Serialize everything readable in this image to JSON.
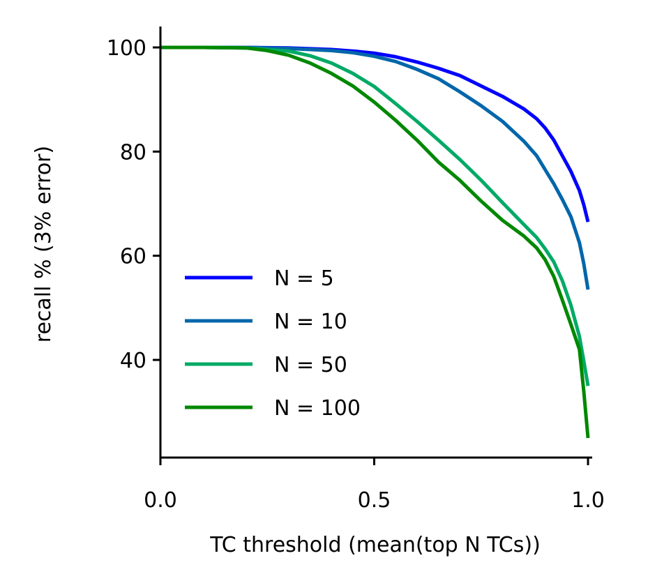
{
  "chart_data": {
    "type": "line",
    "title": "",
    "xlabel": "TC threshold (mean(top N TCs))",
    "ylabel": "recall % (3% error)",
    "xlim": [
      0.0,
      1.0
    ],
    "ylim": [
      22,
      104
    ],
    "xticks": [
      {
        "value": 0.0,
        "label": "0.0"
      },
      {
        "value": 0.5,
        "label": "0.5"
      },
      {
        "value": 1.0,
        "label": "1.0"
      }
    ],
    "yticks": [
      {
        "value": 40,
        "label": "40"
      },
      {
        "value": 60,
        "label": "60"
      },
      {
        "value": 80,
        "label": "80"
      },
      {
        "value": 100,
        "label": "100"
      }
    ],
    "grid": false,
    "legend_position": "lower-left",
    "series": [
      {
        "name": "N = 5",
        "color": "#0000ff",
        "points": [
          [
            0.0,
            100
          ],
          [
            0.1,
            100
          ],
          [
            0.2,
            100
          ],
          [
            0.3,
            99.9
          ],
          [
            0.4,
            99.6
          ],
          [
            0.45,
            99.3
          ],
          [
            0.5,
            98.9
          ],
          [
            0.55,
            98.2
          ],
          [
            0.6,
            97.2
          ],
          [
            0.65,
            96.0
          ],
          [
            0.7,
            94.6
          ],
          [
            0.75,
            92.6
          ],
          [
            0.8,
            90.6
          ],
          [
            0.85,
            88.2
          ],
          [
            0.88,
            86.3
          ],
          [
            0.9,
            84.5
          ],
          [
            0.92,
            82.2
          ],
          [
            0.94,
            79.2
          ],
          [
            0.96,
            76.2
          ],
          [
            0.98,
            72.5
          ],
          [
            0.99,
            69.8
          ],
          [
            1.0,
            66.5
          ]
        ]
      },
      {
        "name": "N = 10",
        "color": "#0066aa",
        "points": [
          [
            0.0,
            100
          ],
          [
            0.1,
            100
          ],
          [
            0.2,
            100
          ],
          [
            0.3,
            99.8
          ],
          [
            0.4,
            99.4
          ],
          [
            0.45,
            99.0
          ],
          [
            0.5,
            98.3
          ],
          [
            0.55,
            97.3
          ],
          [
            0.6,
            95.8
          ],
          [
            0.65,
            94.0
          ],
          [
            0.7,
            91.5
          ],
          [
            0.75,
            88.8
          ],
          [
            0.8,
            85.8
          ],
          [
            0.85,
            82.0
          ],
          [
            0.88,
            79.2
          ],
          [
            0.9,
            76.5
          ],
          [
            0.92,
            73.8
          ],
          [
            0.94,
            70.8
          ],
          [
            0.96,
            67.5
          ],
          [
            0.98,
            62.5
          ],
          [
            0.99,
            58.5
          ],
          [
            1.0,
            53.5
          ]
        ]
      },
      {
        "name": "N = 50",
        "color": "#00aa66",
        "points": [
          [
            0.0,
            100
          ],
          [
            0.1,
            100
          ],
          [
            0.2,
            99.9
          ],
          [
            0.3,
            99.3
          ],
          [
            0.35,
            98.4
          ],
          [
            0.4,
            97.0
          ],
          [
            0.45,
            95.0
          ],
          [
            0.5,
            92.5
          ],
          [
            0.55,
            89.2
          ],
          [
            0.6,
            85.8
          ],
          [
            0.65,
            82.2
          ],
          [
            0.7,
            78.5
          ],
          [
            0.75,
            74.5
          ],
          [
            0.8,
            70.2
          ],
          [
            0.85,
            66.0
          ],
          [
            0.88,
            63.5
          ],
          [
            0.9,
            61.3
          ],
          [
            0.92,
            58.8
          ],
          [
            0.94,
            55.2
          ],
          [
            0.96,
            50.5
          ],
          [
            0.98,
            44.5
          ],
          [
            0.99,
            39.8
          ],
          [
            1.0,
            35.0
          ]
        ]
      },
      {
        "name": "N = 100",
        "color": "#008800",
        "points": [
          [
            0.0,
            100
          ],
          [
            0.1,
            100
          ],
          [
            0.2,
            99.9
          ],
          [
            0.25,
            99.4
          ],
          [
            0.3,
            98.5
          ],
          [
            0.35,
            97.0
          ],
          [
            0.4,
            95.0
          ],
          [
            0.45,
            92.6
          ],
          [
            0.5,
            89.5
          ],
          [
            0.55,
            86.0
          ],
          [
            0.6,
            82.2
          ],
          [
            0.65,
            78.0
          ],
          [
            0.7,
            74.5
          ],
          [
            0.75,
            70.5
          ],
          [
            0.8,
            66.8
          ],
          [
            0.85,
            63.8
          ],
          [
            0.88,
            61.5
          ],
          [
            0.9,
            59.2
          ],
          [
            0.92,
            56.0
          ],
          [
            0.94,
            51.5
          ],
          [
            0.96,
            46.8
          ],
          [
            0.98,
            42.0
          ],
          [
            0.99,
            34.0
          ],
          [
            1.0,
            25.0
          ]
        ]
      }
    ]
  }
}
